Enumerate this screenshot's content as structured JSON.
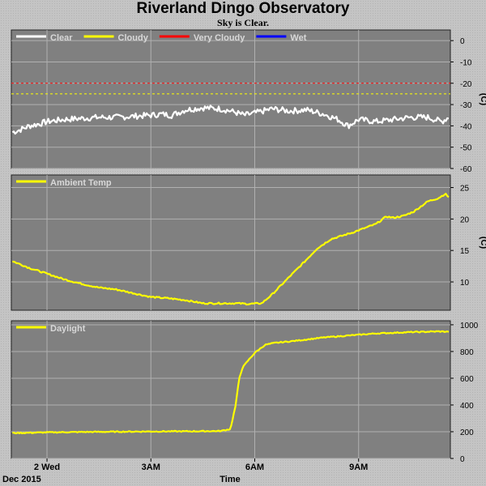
{
  "header": {
    "title": "Riverland Dingo Observatory",
    "status": "Sky is Clear."
  },
  "footer": {
    "date_label": "Dec 2015",
    "time_label": "Time"
  },
  "colors": {
    "plot_bg": "#808080",
    "grid": "#b0b0b0",
    "clear": "#ffffff",
    "cloudy": "#ffff00",
    "very_cloudy": "#ff0000",
    "wet": "#0000ff"
  },
  "x_axis": {
    "range_hours": [
      -1.03,
      11.65
    ],
    "ticks": [
      {
        "hour": 0,
        "label": "2 Wed"
      },
      {
        "hour": 3,
        "label": "3AM"
      },
      {
        "hour": 6,
        "label": "6AM"
      },
      {
        "hour": 9,
        "label": "9AM"
      }
    ]
  },
  "chart_data": [
    {
      "type": "line",
      "panel": "sky",
      "ylabel": "(C)",
      "ylim": [
        -60,
        5
      ],
      "yticks": [
        0,
        -10,
        -20,
        -30,
        -40,
        -50,
        -60
      ],
      "legend": [
        {
          "name": "Clear",
          "color": "#ffffff"
        },
        {
          "name": "Cloudy",
          "color": "#ffff00"
        },
        {
          "name": "Very Cloudy",
          "color": "#ff0000"
        },
        {
          "name": "Wet",
          "color": "#0000ff"
        }
      ],
      "thresholds": [
        {
          "value": -20,
          "color": "#ff0000"
        },
        {
          "value": -25,
          "color": "#ffff00"
        }
      ],
      "series": [
        {
          "name": "Clear",
          "color": "#ffffff",
          "noise": 1.4,
          "x": [
            -1.0,
            -0.8,
            -0.5,
            -0.2,
            0.0,
            0.5,
            1.0,
            1.5,
            2.0,
            2.5,
            3.0,
            3.3,
            3.6,
            4.0,
            4.5,
            5.0,
            5.3,
            5.7,
            6.0,
            6.5,
            7.0,
            7.5,
            8.0,
            8.4,
            8.7,
            9.0,
            9.5,
            10.0,
            10.5,
            11.0,
            11.4,
            11.6
          ],
          "y": [
            -43,
            -42,
            -40,
            -39,
            -38,
            -37,
            -36.5,
            -36,
            -36,
            -35.5,
            -35,
            -34.5,
            -35,
            -32.5,
            -31.5,
            -32,
            -33,
            -35,
            -34,
            -32,
            -33,
            -32.5,
            -34.5,
            -37,
            -40,
            -37,
            -38,
            -37,
            -36,
            -36,
            -38,
            -36
          ]
        }
      ]
    },
    {
      "type": "line",
      "panel": "ambient",
      "ylabel": "(C)",
      "ylim": [
        5.5,
        27
      ],
      "yticks": [
        25,
        20,
        15,
        10
      ],
      "legend": [
        {
          "name": "Ambient Temp",
          "color": "#ffff00"
        }
      ],
      "series": [
        {
          "name": "Ambient Temp",
          "color": "#ffff00",
          "noise": 0.12,
          "x": [
            -1.0,
            -0.5,
            0.0,
            0.5,
            1.0,
            1.5,
            2.0,
            2.5,
            3.0,
            3.5,
            4.0,
            4.5,
            5.0,
            5.5,
            5.8,
            6.2,
            6.5,
            7.0,
            7.4,
            7.8,
            8.2,
            8.5,
            8.8,
            9.0,
            9.5,
            9.8,
            10.0,
            10.3,
            10.6,
            10.8,
            11.0,
            11.3,
            11.5,
            11.6
          ],
          "y": [
            13.3,
            12.2,
            11.3,
            10.4,
            9.7,
            9.1,
            8.8,
            8.2,
            7.6,
            7.4,
            7.1,
            6.6,
            6.6,
            6.6,
            6.5,
            6.6,
            8.0,
            10.8,
            13.0,
            15.3,
            16.8,
            17.3,
            17.8,
            18.2,
            19.2,
            20.4,
            20.2,
            20.5,
            21.2,
            22.0,
            22.8,
            23.3,
            24.0,
            23.5
          ]
        }
      ]
    },
    {
      "type": "line",
      "panel": "daylight",
      "ylabel": "",
      "ylim": [
        0,
        1030
      ],
      "yticks": [
        1000,
        800,
        600,
        400,
        200,
        0
      ],
      "legend": [
        {
          "name": "Daylight",
          "color": "#ffff00"
        }
      ],
      "series": [
        {
          "name": "Daylight",
          "color": "#ffff00",
          "noise": 4,
          "x": [
            -1.0,
            0.0,
            1.0,
            2.0,
            3.0,
            4.0,
            5.0,
            5.3,
            5.45,
            5.55,
            5.65,
            5.8,
            6.0,
            6.3,
            6.6,
            7.0,
            7.5,
            8.0,
            8.5,
            9.0,
            9.5,
            10.0,
            10.5,
            11.0,
            11.3,
            11.6
          ],
          "y": [
            190,
            195,
            198,
            200,
            202,
            203,
            205,
            220,
            400,
            600,
            680,
            730,
            790,
            850,
            865,
            875,
            890,
            905,
            915,
            925,
            935,
            940,
            945,
            948,
            950,
            948
          ]
        }
      ]
    }
  ]
}
